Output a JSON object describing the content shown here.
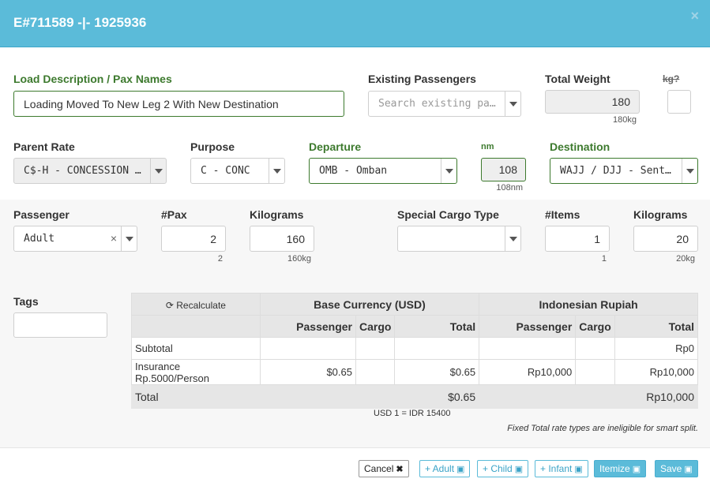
{
  "header": {
    "title": "E#711589 -|- 1925936",
    "close": "×"
  },
  "row1": {
    "load_desc": {
      "label": "Load Description / Pax Names",
      "value": "Loading Moved To New Leg 2 With New Destination"
    },
    "existing_passengers": {
      "label": "Existing Passengers",
      "placeholder": "Search existing pa…"
    },
    "total_weight": {
      "label": "Total Weight",
      "value": "180",
      "sub": "180kg"
    },
    "kg_toggle": {
      "label": "kg?"
    }
  },
  "row2": {
    "parent_rate": {
      "label": "Parent Rate",
      "value": "C$-H - CONCESSION …"
    },
    "purpose": {
      "label": "Purpose",
      "value": "C - CONC"
    },
    "departure": {
      "label": "Departure",
      "value": "OMB - Omban"
    },
    "nm": {
      "label": "nm",
      "value": "108",
      "sub": "108nm"
    },
    "destination": {
      "label": "Destination",
      "value": "WAJJ / DJJ - Sent…"
    }
  },
  "row3": {
    "passenger": {
      "label": "Passenger",
      "value": "Adult",
      "clear": "×"
    },
    "pax": {
      "label": "#Pax",
      "value": "2",
      "sub": "2"
    },
    "kilograms": {
      "label": "Kilograms",
      "value": "160",
      "sub": "160kg"
    },
    "special_cargo": {
      "label": "Special Cargo Type",
      "value": ""
    },
    "items": {
      "label": "#Items",
      "value": "1",
      "sub": "1"
    },
    "cargo_kilograms": {
      "label": "Kilograms",
      "value": "20",
      "sub": "20kg"
    }
  },
  "tags": {
    "label": "Tags",
    "value": ""
  },
  "rates_table": {
    "recalculate": "Recalculate",
    "base_currency": "Base Currency (USD)",
    "local_currency": "Indonesian Rupiah",
    "col_passenger": "Passenger",
    "col_cargo": "Cargo",
    "col_total": "Total",
    "rows": [
      {
        "label": "Subtotal",
        "usd_pax": "",
        "usd_cargo": "",
        "usd_total": "",
        "idr_pax": "",
        "idr_cargo": "",
        "idr_total": "Rp0"
      },
      {
        "label": "Insurance Rp.5000/Person",
        "usd_pax": "$0.65",
        "usd_cargo": "",
        "usd_total": "$0.65",
        "idr_pax": "Rp10,000",
        "idr_cargo": "",
        "idr_total": "Rp10,000"
      }
    ],
    "total_label": "Total",
    "total_usd": "$0.65",
    "total_idr": "Rp10,000",
    "exchange": "USD 1 = IDR 15400",
    "note": "Fixed Total rate types are ineligible for smart split."
  },
  "footer": {
    "cancel": "Cancel",
    "add_adult": "+ Adult",
    "add_child": "+ Child",
    "add_infant": "+ Infant",
    "itemize": "Itemize",
    "save": "Save"
  }
}
